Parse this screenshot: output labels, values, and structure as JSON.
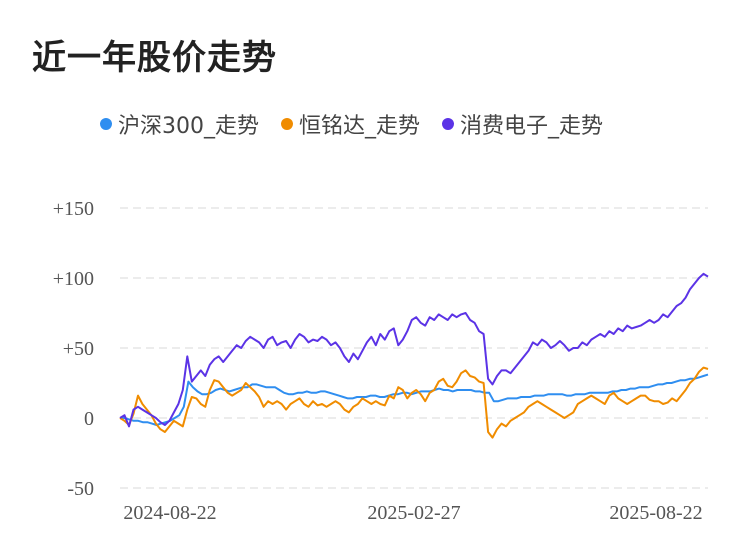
{
  "title": "近一年股价走势",
  "chart_data": {
    "type": "line",
    "title": "近一年股价走势",
    "ylim": [
      -50,
      150
    ],
    "y_ticks": [
      "+150",
      "+100",
      "+50",
      "0",
      "-50"
    ],
    "y_tick_values": [
      150,
      100,
      50,
      0,
      -50
    ],
    "x_tick_labels": [
      "2024-08-22",
      "2025-02-27",
      "2025-08-22"
    ],
    "x_tick_positions": [
      0.05,
      0.5,
      0.95
    ],
    "grid": true,
    "legend_position": "top",
    "series": [
      {
        "name": "沪深300_走势",
        "color": "#2f8ef0",
        "points": [
          [
            0,
            0
          ],
          [
            0.05,
            -3
          ],
          [
            0.08,
            -5
          ],
          [
            0.1,
            -2
          ],
          [
            0.11,
            22
          ],
          [
            0.13,
            17
          ],
          [
            0.16,
            21
          ],
          [
            0.2,
            22
          ],
          [
            0.22,
            22
          ],
          [
            0.25,
            20
          ],
          [
            0.3,
            18
          ],
          [
            0.35,
            19
          ],
          [
            0.38,
            15
          ],
          [
            0.4,
            13
          ],
          [
            0.45,
            15
          ],
          [
            0.5,
            17
          ],
          [
            0.55,
            19
          ],
          [
            0.6,
            20
          ],
          [
            0.62,
            18
          ],
          [
            0.6,
            20
          ],
          [
            0.6,
            20
          ],
          [
            0.6,
            20
          ],
          [
            0.6,
            20
          ],
          [
            0.6,
            20
          ],
          [
            0.6,
            20
          ],
          [
            0.6,
            20
          ],
          [
            0.6,
            20
          ],
          [
            0.6,
            20
          ]
        ]
      }
    ]
  }
}
